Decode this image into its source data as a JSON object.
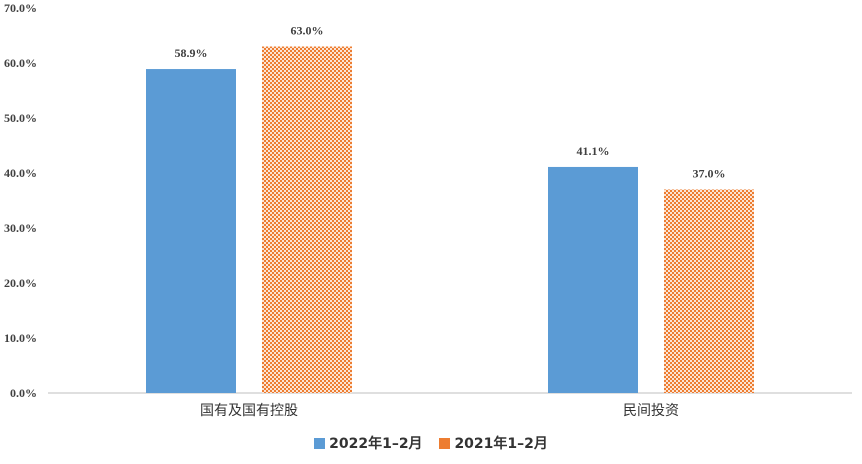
{
  "chart_data": {
    "type": "bar",
    "categories": [
      "国有及国有控股",
      "民间投资"
    ],
    "series": [
      {
        "name": "2022年1–2月",
        "values": [
          58.9,
          41.1
        ],
        "labels": [
          "58.9%",
          "41.1%"
        ],
        "color": "#5B9BD5",
        "pattern": "solid"
      },
      {
        "name": "2021年1–2月",
        "values": [
          63.0,
          37.0
        ],
        "labels": [
          "63.0%",
          "37.0%"
        ],
        "color": "#ED7D31",
        "pattern": "checker"
      }
    ],
    "yticks": [
      "0.0%",
      "10.0%",
      "20.0%",
      "30.0%",
      "40.0%",
      "50.0%",
      "60.0%",
      "70.0%"
    ],
    "ylim": [
      0,
      70
    ],
    "grid": false,
    "legend_position": "bottom"
  }
}
